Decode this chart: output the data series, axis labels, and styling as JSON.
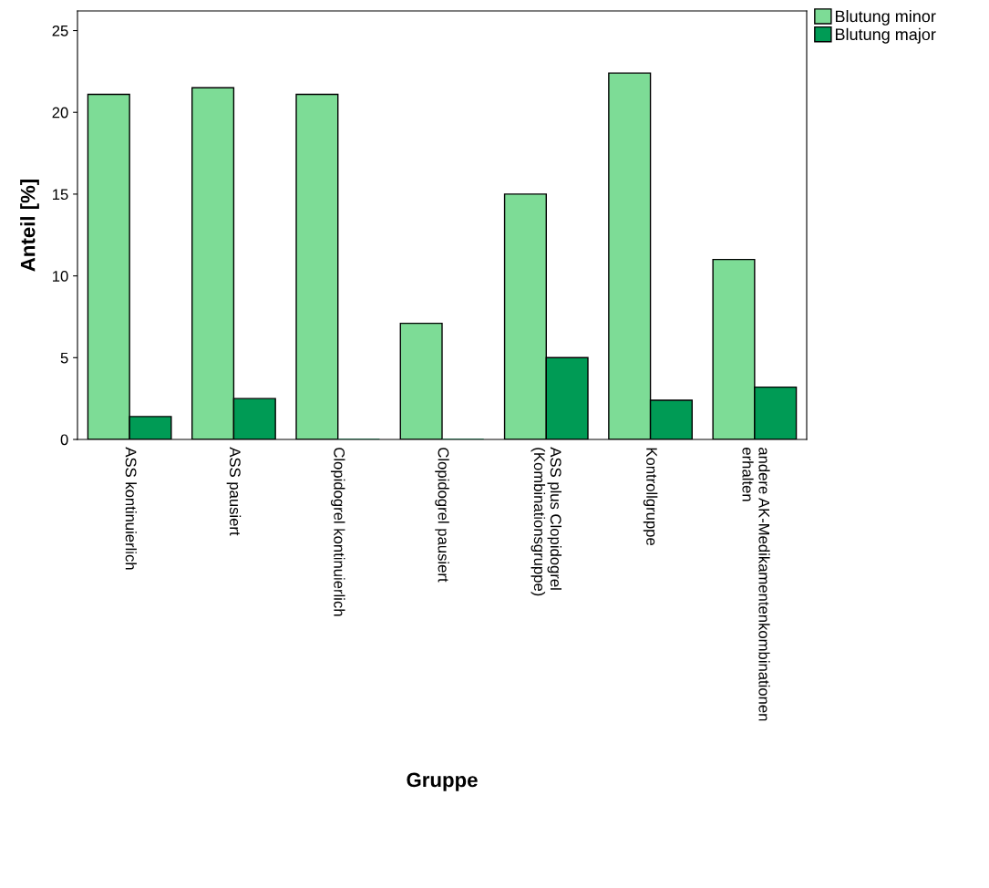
{
  "chart_data": {
    "type": "bar",
    "xlabel": "Gruppe",
    "ylabel": "Anteil [%]",
    "categories": [
      "ASS kontinuierlich",
      "ASS pausiert",
      "Clopidogrel kontinuierlich",
      "Clopidogrel pausiert",
      "ASS plus Clopidogrel\n(Kombinationsgruppe)",
      "Kontrollgruppe",
      "andere AK-Medikamentenkombinationen\nerhalten"
    ],
    "series": [
      {
        "name": "Blutung minor",
        "color": "#7ddc96",
        "values": [
          21.1,
          21.5,
          21.1,
          7.1,
          15.0,
          22.4,
          11.0
        ]
      },
      {
        "name": "Blutung major",
        "color": "#009b55",
        "values": [
          1.4,
          2.5,
          0,
          0,
          5.0,
          2.4,
          3.2
        ]
      }
    ],
    "ylim": [
      0,
      26.2
    ],
    "yticks": [
      0,
      5,
      10,
      15,
      20,
      25
    ],
    "grid": false,
    "legend": "top right"
  }
}
